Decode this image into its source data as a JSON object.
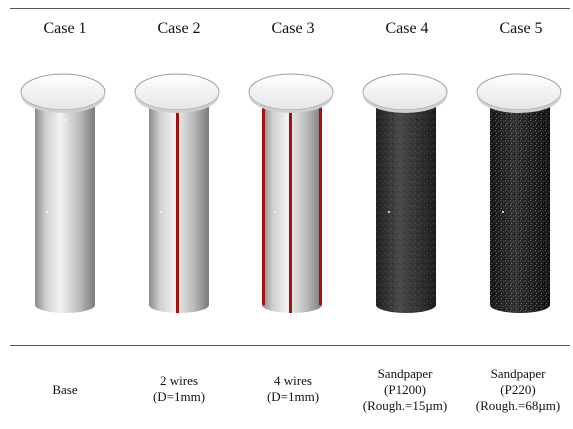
{
  "cases": [
    {
      "title": "Case 1",
      "label_lines": [
        "Base"
      ]
    },
    {
      "title": "Case 2",
      "label_lines": [
        "2 wires",
        "(D=1mm)"
      ]
    },
    {
      "title": "Case 3",
      "label_lines": [
        "4 wires",
        "(D=1mm)"
      ]
    },
    {
      "title": "Case 4",
      "label_lines": [
        "Sandpaper",
        "(P1200)",
        "(Rough.=15µm)"
      ]
    },
    {
      "title": "Case 5",
      "label_lines": [
        "Sandpaper",
        "(P220)",
        "(Rough.=68µm)"
      ]
    }
  ],
  "colors": {
    "wire": "#a31010",
    "top_plate": "#f4f4f4",
    "smooth_surface_light": "#eeeeee",
    "smooth_surface_dark": "#7a7a7a",
    "sandpaper_fine": "#3a3a3a",
    "sandpaper_coarse": "#262626"
  }
}
